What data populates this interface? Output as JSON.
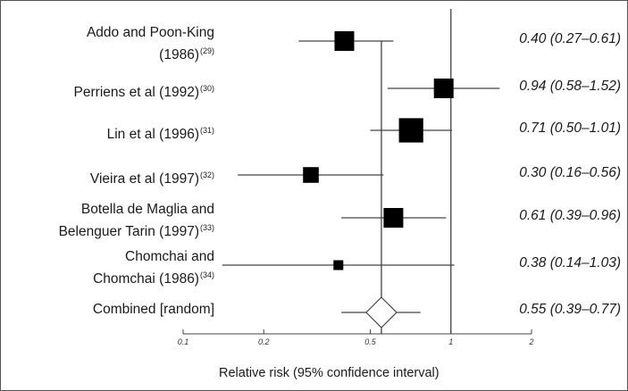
{
  "chart_data": {
    "type": "forest",
    "xlabel": "Relative risk (95% confidence interval)",
    "x_scale": "log",
    "xlim": [
      0.1,
      2
    ],
    "xticks": [
      {
        "value": 0.1,
        "label": "0.1"
      },
      {
        "value": 0.2,
        "label": "0.2"
      },
      {
        "value": 0.5,
        "label": "0.5"
      },
      {
        "value": 1,
        "label": "1"
      },
      {
        "value": 2,
        "label": "2"
      }
    ],
    "reference_line": 1,
    "combined_line": 0.55,
    "studies": [
      {
        "label_lines": [
          "Addo and Poon-King",
          "(1986)"
        ],
        "ref": "(29)",
        "rr": 0.4,
        "lo": 0.27,
        "hi": 0.61,
        "estimate_text": "0.40 (0.27–0.61)",
        "weight": 1.0
      },
      {
        "label_lines": [
          "Perriens et al (1992)"
        ],
        "ref": "(30)",
        "rr": 0.94,
        "lo": 0.58,
        "hi": 1.52,
        "estimate_text": "0.94 (0.58–1.52)",
        "weight": 1.0
      },
      {
        "label_lines": [
          "Lin et al (1996)"
        ],
        "ref": "(31)",
        "rr": 0.71,
        "lo": 0.5,
        "hi": 1.01,
        "estimate_text": "0.71 (0.50–1.01)",
        "weight": 1.1
      },
      {
        "label_lines": [
          "Vieira et al (1997)"
        ],
        "ref": "(32)",
        "rr": 0.3,
        "lo": 0.16,
        "hi": 0.56,
        "estimate_text": "0.30 (0.16–0.56)",
        "weight": 0.8
      },
      {
        "label_lines": [
          "Botella de Maglia and",
          "Belenguer Tarin (1997)"
        ],
        "ref": "(33)",
        "rr": 0.61,
        "lo": 0.39,
        "hi": 0.96,
        "estimate_text": "0.61 (0.39–0.96)",
        "weight": 1.0
      },
      {
        "label_lines": [
          "Chomchai and",
          "Chomchai (1986)"
        ],
        "ref": "(34)",
        "rr": 0.38,
        "lo": 0.14,
        "hi": 1.03,
        "estimate_text": "0.38 (0.14–1.03)",
        "weight": 0.5
      }
    ],
    "combined": {
      "label": "Combined [random]",
      "rr": 0.55,
      "lo": 0.39,
      "hi": 0.77,
      "estimate_text": "0.55 (0.39–0.77)"
    },
    "colors": {
      "marker": "#000000",
      "line": "#444444",
      "diamond_fill": "#ffffff"
    }
  }
}
